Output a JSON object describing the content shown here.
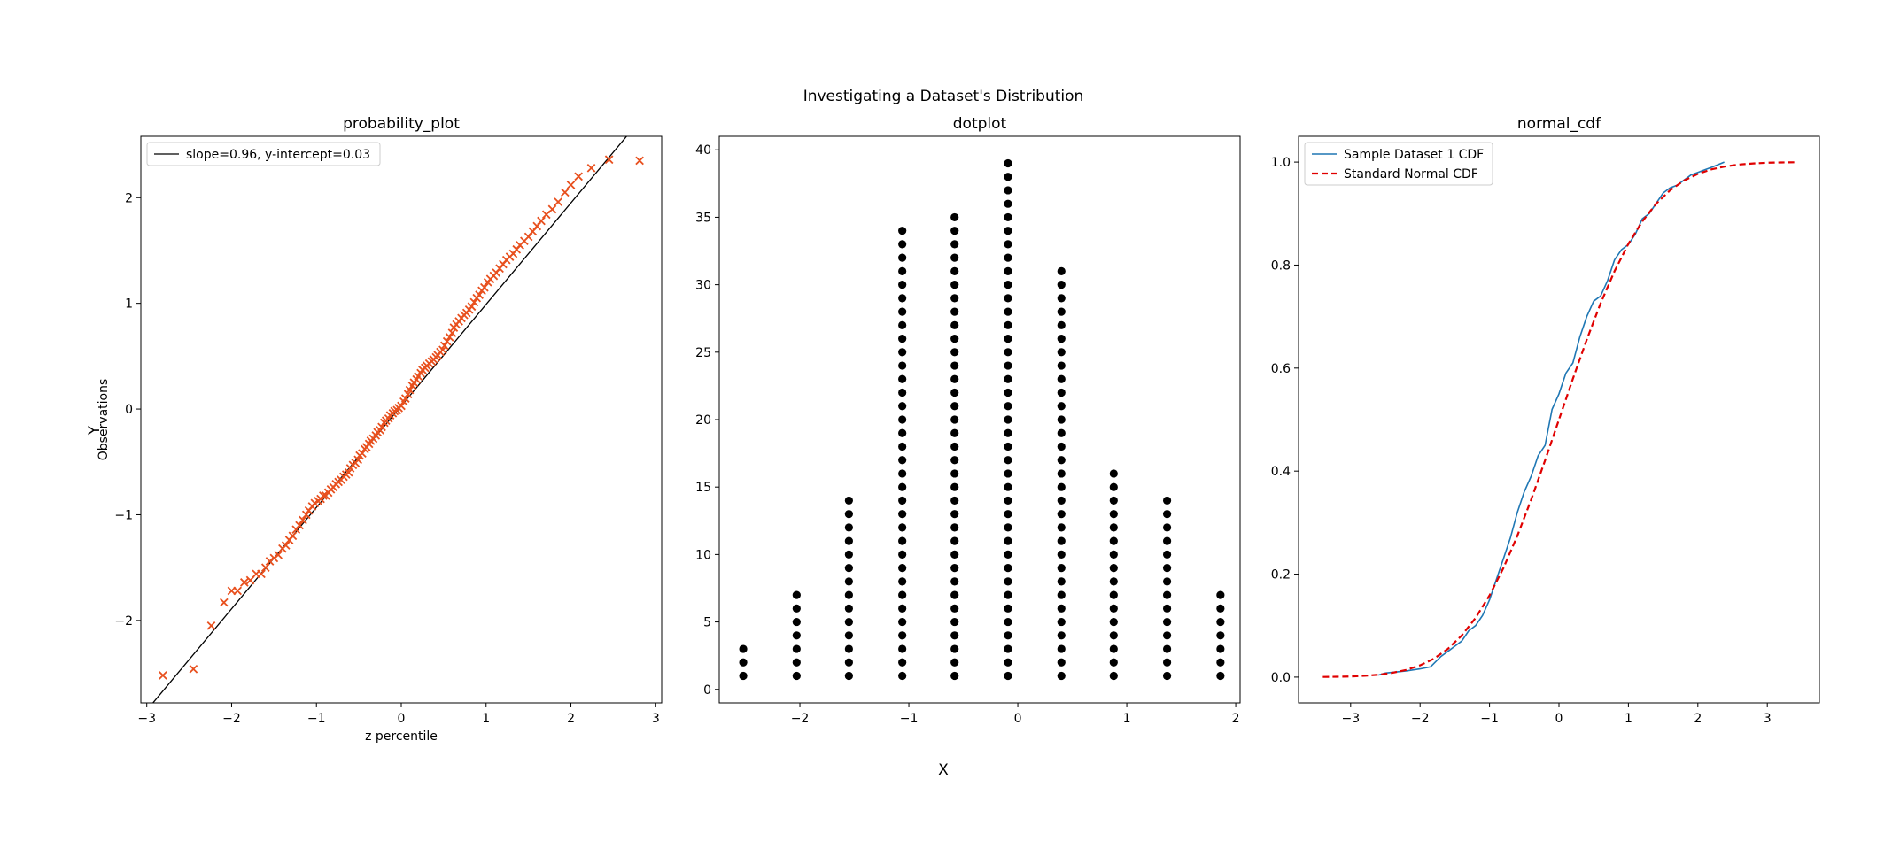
{
  "figure": {
    "suptitle": "Investigating a Dataset's Distribution",
    "supxlabel": "X",
    "supylabel": "Y"
  },
  "chart_data": [
    {
      "type": "scatter",
      "title": "probability_plot",
      "xlabel": "z percentile",
      "ylabel": "Observations",
      "xlim": [
        -3.07,
        3.07
      ],
      "ylim": [
        -2.78,
        2.58
      ],
      "xticks": [
        -3,
        -2,
        -1,
        0,
        1,
        2,
        3
      ],
      "yticks": [
        -2,
        -1,
        0,
        1,
        2
      ],
      "grid": false,
      "legend": "upper-left",
      "marker_color": "#e8501e",
      "line_color": "#000000",
      "fit": {
        "slope": 0.96,
        "intercept": 0.03,
        "label": "slope=0.96, y-intercept=0.03"
      },
      "series": [
        {
          "x": [
            -2.81,
            -2.45,
            -2.24,
            -2.09,
            -2.0,
            -1.93,
            -1.85,
            -1.78,
            -1.71,
            -1.65,
            -1.6,
            -1.55,
            -1.5,
            -1.45,
            -1.4,
            -1.36,
            -1.32,
            -1.28,
            -1.24,
            -1.2,
            -1.16,
            -1.12,
            -1.09,
            -1.05,
            -1.02,
            -0.98,
            -0.95,
            -0.92,
            -0.89,
            -0.86,
            -0.83,
            -0.8,
            -0.77,
            -0.74,
            -0.71,
            -0.68,
            -0.65,
            -0.62,
            -0.6,
            -0.57,
            -0.54,
            -0.51,
            -0.49,
            -0.46,
            -0.43,
            -0.41,
            -0.38,
            -0.36,
            -0.33,
            -0.3,
            -0.28,
            -0.25,
            -0.23,
            -0.2,
            -0.18,
            -0.15,
            -0.13,
            -0.1,
            -0.08,
            -0.05,
            -0.03,
            0.0,
            0.03,
            0.05,
            0.08,
            0.1,
            0.13,
            0.15,
            0.18,
            0.2,
            0.23,
            0.25,
            0.28,
            0.3,
            0.33,
            0.36,
            0.38,
            0.41,
            0.43,
            0.46,
            0.49,
            0.51,
            0.54,
            0.57,
            0.6,
            0.62,
            0.65,
            0.68,
            0.71,
            0.74,
            0.77,
            0.8,
            0.83,
            0.86,
            0.89,
            0.92,
            0.95,
            0.98,
            1.02,
            1.05,
            1.09,
            1.12,
            1.16,
            1.2,
            1.24,
            1.28,
            1.32,
            1.36,
            1.4,
            1.45,
            1.5,
            1.55,
            1.6,
            1.65,
            1.71,
            1.78,
            1.85,
            1.93,
            2.0,
            2.09,
            2.24,
            2.45,
            2.81
          ],
          "y": [
            -2.52,
            -2.46,
            -2.05,
            -1.83,
            -1.72,
            -1.72,
            -1.64,
            -1.62,
            -1.56,
            -1.56,
            -1.5,
            -1.44,
            -1.41,
            -1.38,
            -1.32,
            -1.29,
            -1.24,
            -1.2,
            -1.14,
            -1.1,
            -1.05,
            -1.0,
            -0.96,
            -0.92,
            -0.89,
            -0.87,
            -0.85,
            -0.82,
            -0.82,
            -0.79,
            -0.76,
            -0.74,
            -0.71,
            -0.69,
            -0.67,
            -0.64,
            -0.62,
            -0.6,
            -0.56,
            -0.53,
            -0.51,
            -0.48,
            -0.44,
            -0.42,
            -0.38,
            -0.36,
            -0.33,
            -0.3,
            -0.28,
            -0.25,
            -0.22,
            -0.2,
            -0.17,
            -0.13,
            -0.11,
            -0.09,
            -0.06,
            -0.04,
            -0.02,
            -0.01,
            0.01,
            0.03,
            0.07,
            0.1,
            0.14,
            0.18,
            0.22,
            0.25,
            0.28,
            0.31,
            0.34,
            0.37,
            0.39,
            0.41,
            0.43,
            0.45,
            0.47,
            0.49,
            0.51,
            0.54,
            0.56,
            0.6,
            0.64,
            0.68,
            0.72,
            0.77,
            0.8,
            0.83,
            0.86,
            0.89,
            0.91,
            0.94,
            0.97,
            1.01,
            1.05,
            1.08,
            1.12,
            1.15,
            1.2,
            1.23,
            1.26,
            1.29,
            1.33,
            1.37,
            1.41,
            1.44,
            1.47,
            1.51,
            1.55,
            1.59,
            1.63,
            1.68,
            1.73,
            1.78,
            1.84,
            1.89,
            1.96,
            2.05,
            2.12,
            2.2,
            2.28,
            2.36,
            2.35
          ]
        }
      ]
    },
    {
      "type": "scatter",
      "title": "dotplot",
      "xlim": [
        -2.74,
        2.04
      ],
      "ylim": [
        -1,
        41
      ],
      "xticks": [
        -2,
        -1,
        0,
        1,
        2
      ],
      "yticks": [
        0,
        5,
        10,
        15,
        20,
        25,
        30,
        35,
        40
      ],
      "grid": false,
      "marker_color": "#000000",
      "bins": [
        -2.52,
        -2.03,
        -1.55,
        -1.06,
        -0.58,
        -0.09,
        0.4,
        0.88,
        1.37,
        1.86
      ],
      "counts": [
        3,
        7,
        14,
        34,
        35,
        39,
        31,
        16,
        14,
        7
      ]
    },
    {
      "type": "line",
      "title": "normal_cdf",
      "xlim": [
        -3.75,
        3.75
      ],
      "ylim": [
        -0.05,
        1.05
      ],
      "xticks": [
        -3,
        -2,
        -1,
        0,
        1,
        2,
        3
      ],
      "yticks": [
        0.0,
        0.2,
        0.4,
        0.6,
        0.8,
        1.0
      ],
      "grid": false,
      "legend": "upper-left",
      "series": [
        {
          "name": "Sample Dataset 1 CDF",
          "color": "#1f77b4",
          "dash": "solid",
          "x": [
            -2.6,
            -2.5,
            -2.2,
            -2.0,
            -1.85,
            -1.7,
            -1.6,
            -1.5,
            -1.4,
            -1.3,
            -1.2,
            -1.1,
            -1.0,
            -0.9,
            -0.8,
            -0.7,
            -0.6,
            -0.5,
            -0.4,
            -0.3,
            -0.2,
            -0.1,
            0.0,
            0.1,
            0.2,
            0.3,
            0.4,
            0.5,
            0.6,
            0.7,
            0.8,
            0.9,
            1.0,
            1.1,
            1.2,
            1.3,
            1.4,
            1.5,
            1.6,
            1.7,
            1.8,
            1.9,
            2.0,
            2.1,
            2.2,
            2.38
          ],
          "y": [
            0.004,
            0.008,
            0.012,
            0.016,
            0.02,
            0.04,
            0.05,
            0.06,
            0.07,
            0.09,
            0.1,
            0.12,
            0.15,
            0.19,
            0.23,
            0.27,
            0.32,
            0.36,
            0.39,
            0.43,
            0.45,
            0.52,
            0.55,
            0.59,
            0.61,
            0.66,
            0.7,
            0.73,
            0.74,
            0.77,
            0.81,
            0.83,
            0.84,
            0.86,
            0.89,
            0.9,
            0.92,
            0.94,
            0.95,
            0.955,
            0.965,
            0.975,
            0.98,
            0.985,
            0.99,
            1.0
          ]
        },
        {
          "name": "Standard Normal CDF",
          "color": "#e00000",
          "dash": "dashed",
          "x": [
            -3.4,
            -3.2,
            -3.0,
            -2.8,
            -2.6,
            -2.4,
            -2.2,
            -2.0,
            -1.8,
            -1.6,
            -1.4,
            -1.2,
            -1.0,
            -0.8,
            -0.6,
            -0.4,
            -0.2,
            0.0,
            0.2,
            0.4,
            0.6,
            0.8,
            1.0,
            1.2,
            1.4,
            1.6,
            1.8,
            2.0,
            2.2,
            2.4,
            2.6,
            2.8,
            3.0,
            3.2,
            3.4
          ],
          "y": [
            0.0003,
            0.0007,
            0.0013,
            0.0026,
            0.0047,
            0.0082,
            0.0139,
            0.0228,
            0.0359,
            0.0548,
            0.0808,
            0.1151,
            0.1587,
            0.2119,
            0.2743,
            0.3446,
            0.4207,
            0.5,
            0.5793,
            0.6554,
            0.7257,
            0.7881,
            0.8413,
            0.8849,
            0.9192,
            0.9452,
            0.9641,
            0.9772,
            0.9861,
            0.9918,
            0.9953,
            0.9974,
            0.9987,
            0.9993,
            0.9997
          ]
        }
      ]
    }
  ]
}
